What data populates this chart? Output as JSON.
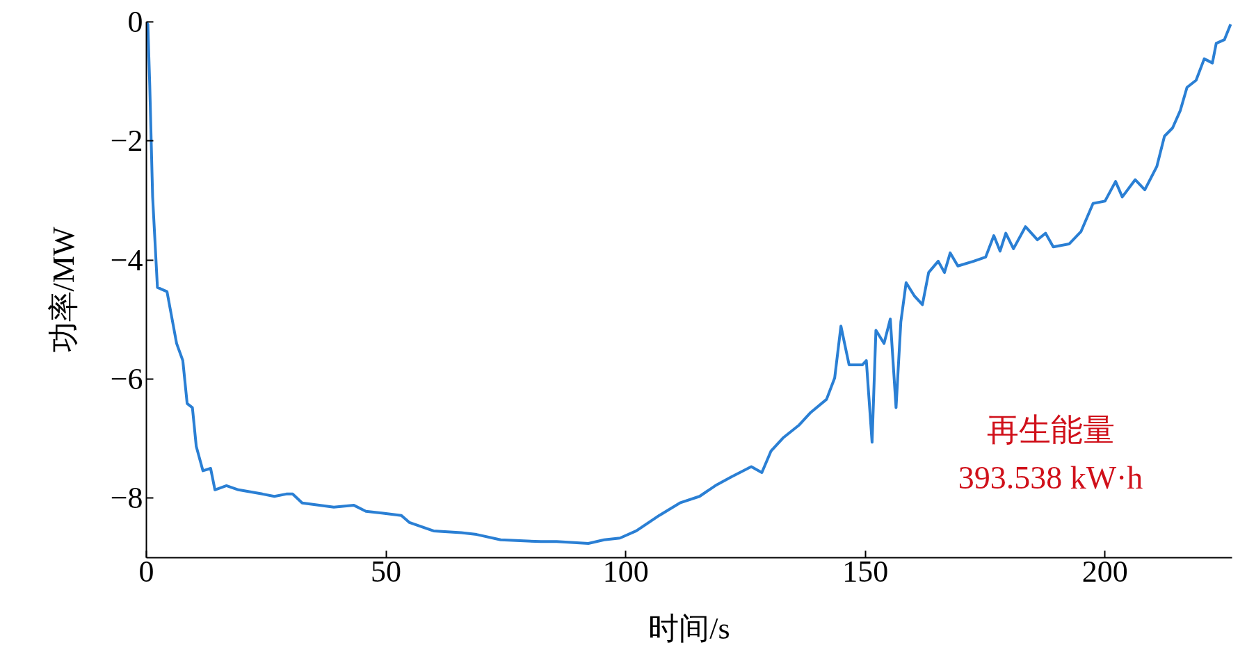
{
  "chart_data": {
    "type": "line",
    "xlabel": "时间/s",
    "ylabel": "功率/MW",
    "annotations": [
      "再生能量",
      "393.538 kW·h"
    ],
    "x": [
      0,
      0.3,
      0.7,
      1.3,
      2.3,
      4.3,
      6.3,
      7.6,
      8.5,
      9.6,
      10.4,
      11.8,
      13.4,
      14.3,
      16.7,
      19.2,
      24.2,
      26.7,
      29.2,
      30.5,
      32.5,
      39.1,
      43.3,
      45.8,
      49.1,
      53.2,
      54.9,
      59.9,
      65.7,
      68.9,
      73.9,
      82.3,
      85.6,
      92.2,
      95.5,
      98.8,
      102.2,
      107,
      111.3,
      115.4,
      118.7,
      122.1,
      126.2,
      128.4,
      130.3,
      132.8,
      136.2,
      138.6,
      141.9,
      143.6,
      144.9,
      146.6,
      149.4,
      150.2,
      151.4,
      152.2,
      153.9,
      155.2,
      156.4,
      157.4,
      158.5,
      160.2,
      161.9,
      163.2,
      165.2,
      166.5,
      167.7,
      169.3,
      172.6,
      175.1,
      176.8,
      178.1,
      179.3,
      180.9,
      183.4,
      185.9,
      187.6,
      189.2,
      192.5,
      195,
      197.5,
      200,
      202.2,
      203.6,
      206.3,
      208.3,
      210.8,
      212.4,
      214.1,
      215.7,
      217.1,
      219,
      220.7,
      222.4,
      223.2,
      224.9,
      226.2
    ],
    "series": [
      {
        "color": "#2a7fd4",
        "values": [
          0,
          -0.04,
          -1.06,
          -2.94,
          -4.46,
          -4.53,
          -5.4,
          -5.69,
          -6.41,
          -6.48,
          -7.13,
          -7.54,
          -7.5,
          -7.86,
          -7.79,
          -7.86,
          -7.93,
          -7.97,
          -7.93,
          -7.93,
          -8.08,
          -8.15,
          -8.12,
          -8.22,
          -8.25,
          -8.29,
          -8.41,
          -8.55,
          -8.58,
          -8.61,
          -8.7,
          -8.73,
          -8.73,
          -8.76,
          -8.7,
          -8.67,
          -8.55,
          -8.29,
          -8.08,
          -7.97,
          -7.79,
          -7.64,
          -7.47,
          -7.57,
          -7.21,
          -6.99,
          -6.77,
          -6.56,
          -6.34,
          -5.98,
          -5.11,
          -5.76,
          -5.76,
          -5.69,
          -7.06,
          -5.18,
          -5.4,
          -4.99,
          -6.48,
          -5.04,
          -4.38,
          -4.6,
          -4.75,
          -4.21,
          -4.02,
          -4.21,
          -3.88,
          -4.1,
          -4.02,
          -3.95,
          -3.59,
          -3.85,
          -3.55,
          -3.81,
          -3.44,
          -3.66,
          -3.55,
          -3.78,
          -3.73,
          -3.52,
          -3.05,
          -3.01,
          -2.68,
          -2.94,
          -2.65,
          -2.82,
          -2.43,
          -1.92,
          -1.78,
          -1.49,
          -1.1,
          -0.98,
          -0.62,
          -0.69,
          -0.36,
          -0.3,
          -0.04
        ]
      }
    ],
    "xlim": [
      0,
      226.5
    ],
    "ylim": [
      -9,
      0
    ],
    "xticks": [
      0,
      50,
      100,
      150,
      200
    ],
    "yticks": [
      0,
      {
        "value": -2,
        "label": "−2"
      },
      {
        "value": -4,
        "label": "−4"
      },
      {
        "value": -6,
        "label": "−6"
      },
      {
        "value": -8,
        "label": "−8"
      }
    ],
    "grid": false,
    "marker": "none",
    "line_style": "solid"
  }
}
